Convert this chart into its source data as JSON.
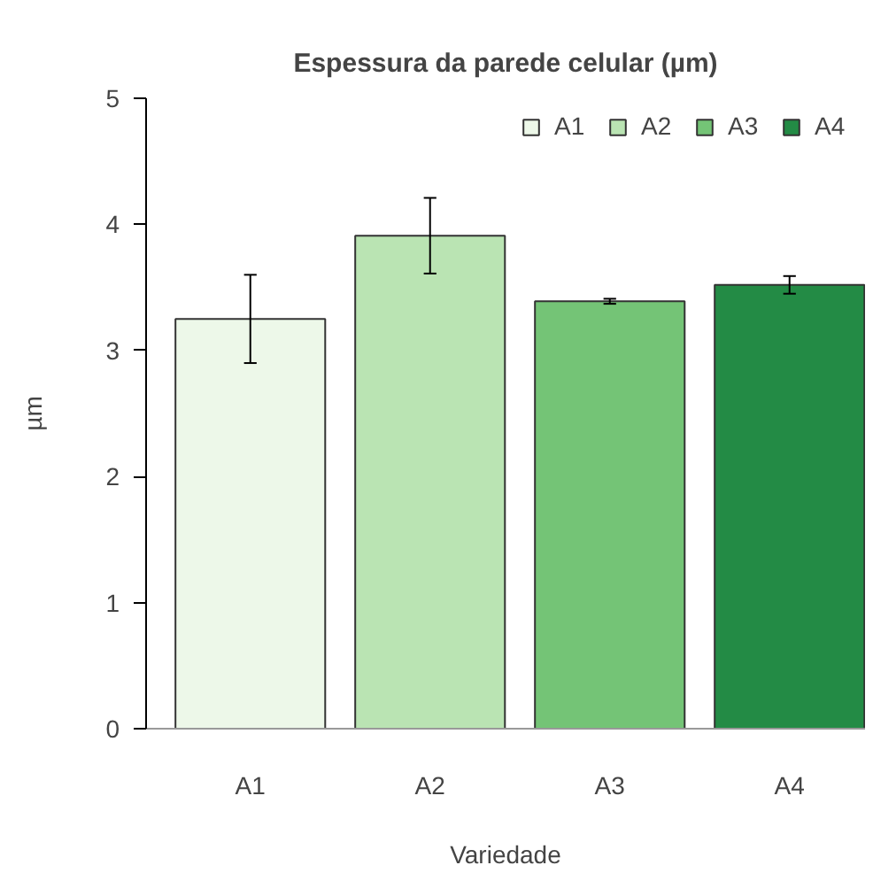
{
  "chart_data": {
    "type": "bar",
    "title": "Espessura da parede celular (µm)",
    "xlabel": "Variedade",
    "ylabel": "µm",
    "categories": [
      "A1",
      "A2",
      "A3",
      "A4"
    ],
    "stacked": true,
    "series": [
      {
        "name": "A1",
        "color": "#edf8e9",
        "values": [
          3.25,
          null,
          null,
          null
        ],
        "errors": [
          0.35,
          null,
          null,
          null
        ]
      },
      {
        "name": "A2",
        "color": "#bae4b3",
        "values": [
          null,
          3.91,
          null,
          null
        ],
        "errors": [
          null,
          0.3,
          null,
          null
        ]
      },
      {
        "name": "A3",
        "color": "#74c476",
        "values": [
          null,
          null,
          3.39,
          null
        ],
        "errors": [
          null,
          null,
          0.02,
          null
        ]
      },
      {
        "name": "A4",
        "color": "#238b45",
        "values": [
          null,
          null,
          null,
          3.52
        ],
        "errors": [
          null,
          null,
          null,
          0.07
        ]
      }
    ],
    "ylim": [
      0,
      5
    ],
    "yticks": [
      0,
      1,
      2,
      3,
      4,
      5
    ],
    "legend": "top right"
  }
}
